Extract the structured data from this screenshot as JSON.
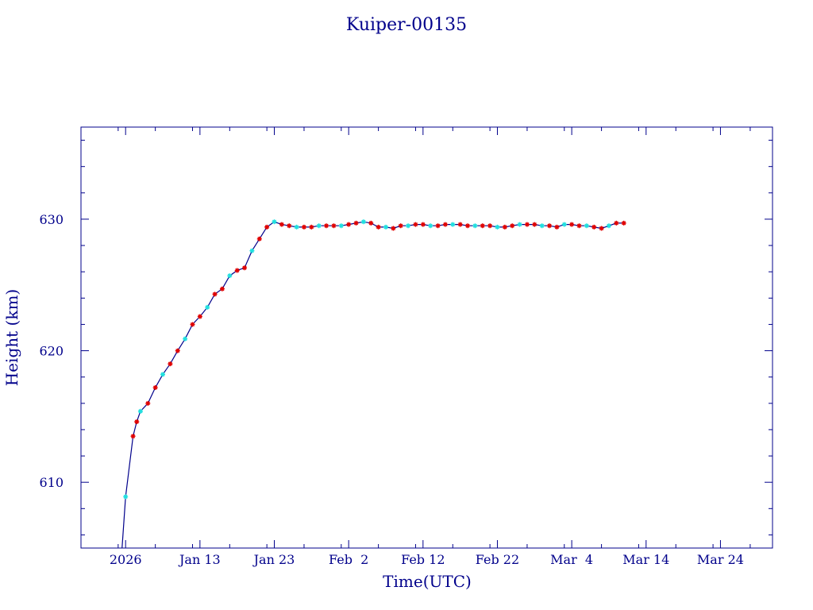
{
  "chart_data": {
    "type": "scatter",
    "title": "Kuiper-00135",
    "xlabel": "Time(UTC)",
    "ylabel": "Height (km)",
    "x_ticks": [
      "2026",
      "Jan 13",
      "Jan 23",
      "Feb  2",
      "Feb 12",
      "Feb 22",
      "Mar  4",
      "Mar 14",
      "Mar 24"
    ],
    "y_ticks": [
      "610",
      "620",
      "630"
    ],
    "xlim": [
      "2025-12-28",
      "2026-03-31"
    ],
    "ylim": [
      605,
      637
    ],
    "grid": false,
    "colors": {
      "axes": "#00008b",
      "line": "#00008b",
      "red_marker": "#e00000",
      "cyan_marker": "#20e0e0"
    },
    "series": [
      {
        "points": [
          [
            "2026-01-02T12:00",
            604.8
          ],
          [
            "2026-01-03",
            608.9
          ],
          [
            "2026-01-04",
            613.5
          ],
          [
            "2026-01-04T12:00",
            614.6
          ],
          [
            "2026-01-05",
            615.4
          ],
          [
            "2026-01-06",
            616.0
          ],
          [
            "2026-01-07",
            617.2
          ],
          [
            "2026-01-08",
            618.2
          ],
          [
            "2026-01-09",
            619.0
          ],
          [
            "2026-01-10",
            620.0
          ],
          [
            "2026-01-11",
            620.9
          ],
          [
            "2026-01-12",
            622.0
          ],
          [
            "2026-01-13",
            622.6
          ],
          [
            "2026-01-14",
            623.3
          ],
          [
            "2026-01-15",
            624.3
          ],
          [
            "2026-01-16",
            624.7
          ],
          [
            "2026-01-17",
            625.7
          ],
          [
            "2026-01-18",
            626.1
          ],
          [
            "2026-01-19",
            626.3
          ],
          [
            "2026-01-20",
            627.6
          ],
          [
            "2026-01-21",
            628.5
          ],
          [
            "2026-01-22",
            629.4
          ],
          [
            "2026-01-23",
            629.8
          ],
          [
            "2026-01-24",
            629.6
          ],
          [
            "2026-01-25",
            629.5
          ],
          [
            "2026-01-26",
            629.4
          ],
          [
            "2026-01-27",
            629.4
          ],
          [
            "2026-01-28",
            629.4
          ],
          [
            "2026-01-29",
            629.5
          ],
          [
            "2026-01-30",
            629.5
          ],
          [
            "2026-01-31",
            629.5
          ],
          [
            "2026-02-01",
            629.5
          ],
          [
            "2026-02-02",
            629.6
          ],
          [
            "2026-02-03",
            629.7
          ],
          [
            "2026-02-04",
            629.8
          ],
          [
            "2026-02-05",
            629.7
          ],
          [
            "2026-02-06",
            629.4
          ],
          [
            "2026-02-07",
            629.4
          ],
          [
            "2026-02-08",
            629.3
          ],
          [
            "2026-02-09",
            629.5
          ],
          [
            "2026-02-10",
            629.5
          ],
          [
            "2026-02-11",
            629.6
          ],
          [
            "2026-02-12",
            629.6
          ],
          [
            "2026-02-13",
            629.5
          ],
          [
            "2026-02-14",
            629.5
          ],
          [
            "2026-02-15",
            629.6
          ],
          [
            "2026-02-16",
            629.6
          ],
          [
            "2026-02-17",
            629.6
          ],
          [
            "2026-02-18",
            629.5
          ],
          [
            "2026-02-19",
            629.5
          ],
          [
            "2026-02-20",
            629.5
          ],
          [
            "2026-02-21",
            629.5
          ],
          [
            "2026-02-22",
            629.4
          ],
          [
            "2026-02-23",
            629.4
          ],
          [
            "2026-02-24",
            629.5
          ],
          [
            "2026-02-25",
            629.6
          ],
          [
            "2026-02-26",
            629.6
          ],
          [
            "2026-02-27",
            629.6
          ],
          [
            "2026-02-28",
            629.5
          ],
          [
            "2026-03-01",
            629.5
          ],
          [
            "2026-03-02",
            629.4
          ],
          [
            "2026-03-03",
            629.6
          ],
          [
            "2026-03-04",
            629.6
          ],
          [
            "2026-03-05",
            629.5
          ],
          [
            "2026-03-06",
            629.5
          ],
          [
            "2026-03-07",
            629.4
          ],
          [
            "2026-03-08",
            629.3
          ],
          [
            "2026-03-09",
            629.5
          ],
          [
            "2026-03-10",
            629.7
          ],
          [
            "2026-03-11",
            629.7
          ]
        ]
      }
    ]
  }
}
